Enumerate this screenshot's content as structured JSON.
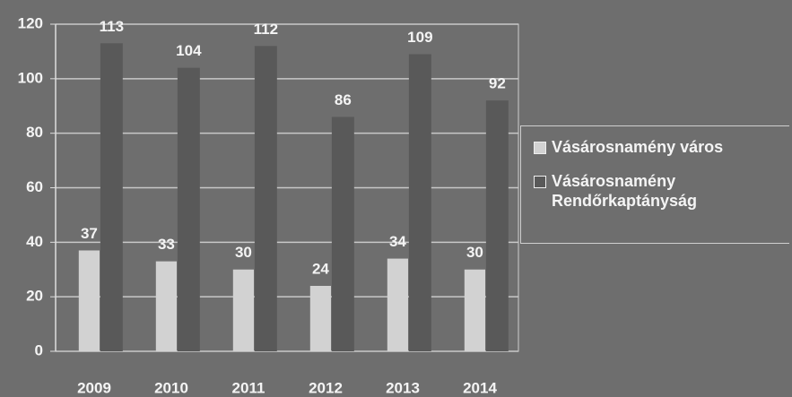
{
  "chart_data": {
    "type": "bar",
    "categories": [
      "2009",
      "2010",
      "2011",
      "2012",
      "2013",
      "2014"
    ],
    "series": [
      {
        "name": "Vásárosnamény város",
        "color": "#d2d2d2",
        "values": [
          37,
          33,
          30,
          24,
          34,
          30
        ]
      },
      {
        "name": "Vásárosnamény Rendőrkaptányság",
        "color": "#595959",
        "values": [
          113,
          104,
          112,
          86,
          109,
          92
        ]
      }
    ],
    "ylim": [
      0,
      120
    ],
    "yticks": [
      0,
      20,
      40,
      60,
      80,
      100,
      120
    ],
    "grid": true,
    "legend": "right"
  }
}
